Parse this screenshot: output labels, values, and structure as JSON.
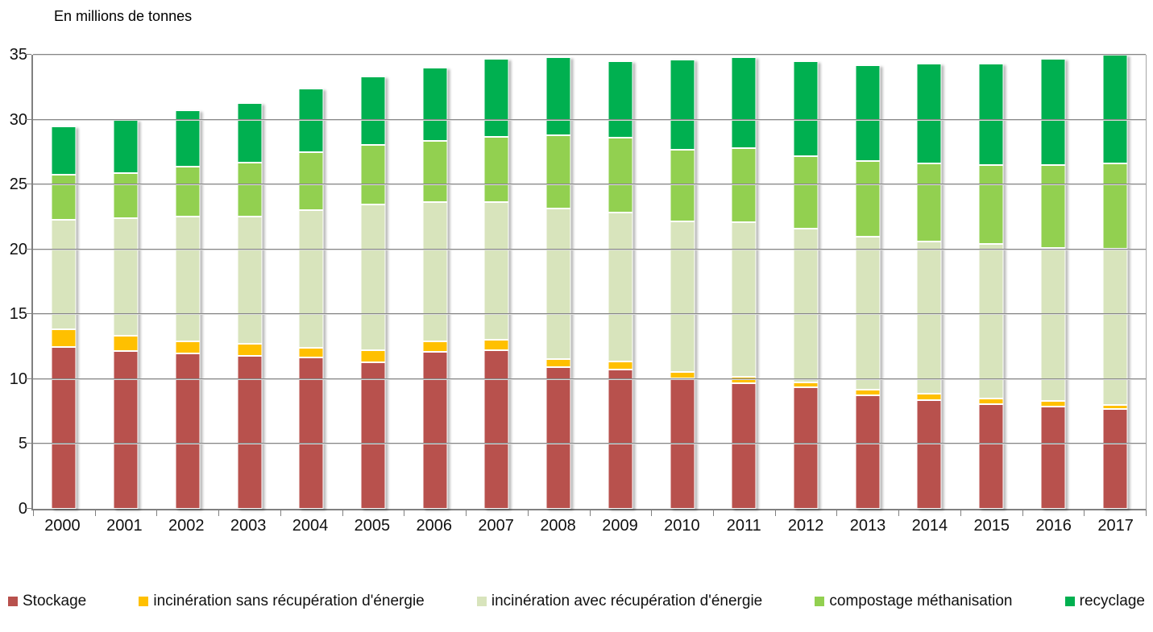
{
  "chart_data": {
    "type": "bar",
    "stacked": true,
    "title": "En millions de tonnes",
    "xlabel": "",
    "ylabel": "En millions de tonnes",
    "ylim": [
      0,
      35
    ],
    "yticks": [
      0,
      5,
      10,
      15,
      20,
      25,
      30,
      35
    ],
    "grid": true,
    "legend_position": "bottom",
    "categories": [
      "2000",
      "2001",
      "2002",
      "2003",
      "2004",
      "2005",
      "2006",
      "2007",
      "2008",
      "2009",
      "2010",
      "2011",
      "2012",
      "2013",
      "2014",
      "2015",
      "2016",
      "2017"
    ],
    "series": [
      {
        "name": "Stockage",
        "slug": "stockage",
        "color": "#b8514d",
        "values": [
          12.6,
          12.3,
          12.1,
          11.9,
          11.8,
          11.4,
          12.2,
          12.3,
          11.0,
          10.8,
          10.1,
          9.7,
          9.4,
          8.8,
          8.4,
          8.1,
          7.9,
          7.7
        ]
      },
      {
        "name": "incinération sans récupération d'énergie",
        "slug": "incineration-sans-recuperation-energie",
        "color": "#ffc000",
        "values": [
          1.3,
          1.1,
          0.8,
          0.8,
          0.6,
          0.8,
          0.7,
          0.7,
          0.5,
          0.5,
          0.4,
          0.4,
          0.3,
          0.3,
          0.4,
          0.3,
          0.3,
          0.2
        ]
      },
      {
        "name": "incinération avec récupération d'énergie",
        "slug": "incineration-avec-recuperation-energie",
        "color": "#d8e4bc",
        "values": [
          8.5,
          9.1,
          9.7,
          9.9,
          10.7,
          11.3,
          10.8,
          10.7,
          11.7,
          11.6,
          11.7,
          12.0,
          11.9,
          11.9,
          11.8,
          12.0,
          11.9,
          12.1
        ]
      },
      {
        "name": "compostage méthanisation",
        "slug": "compostage-methanisation",
        "color": "#92d050",
        "values": [
          3.4,
          3.4,
          3.8,
          4.1,
          4.4,
          4.6,
          4.7,
          5.0,
          5.6,
          5.7,
          5.5,
          5.7,
          5.6,
          5.8,
          6.0,
          6.1,
          6.4,
          6.6
        ]
      },
      {
        "name": "recyclage",
        "slug": "recyclage",
        "color": "#00b050",
        "values": [
          3.7,
          4.1,
          4.3,
          4.6,
          4.9,
          5.2,
          5.6,
          6.0,
          6.0,
          5.9,
          6.9,
          7.0,
          7.3,
          7.4,
          7.7,
          7.8,
          8.2,
          8.4
        ]
      }
    ],
    "totals": [
      29.5,
      30.0,
      30.7,
      31.3,
      32.4,
      33.3,
      34.0,
      34.7,
      34.8,
      34.5,
      34.6,
      34.8,
      34.5,
      34.2,
      34.3,
      34.3,
      34.7,
      35.0
    ]
  },
  "colors": {
    "axis_line": "#808080",
    "gridline": "#878787",
    "text": "#111111",
    "background": "#ffffff"
  }
}
